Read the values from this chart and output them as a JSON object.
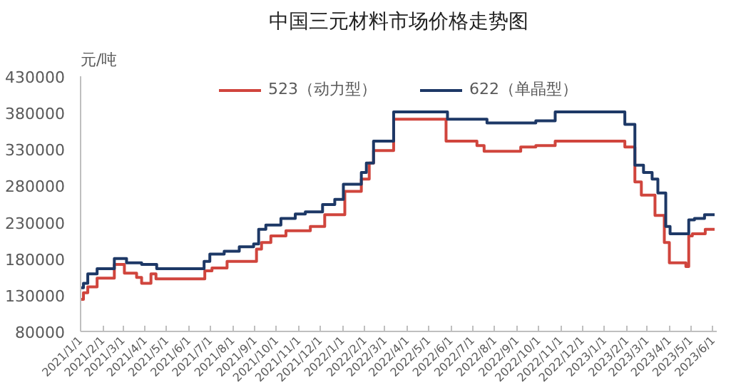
{
  "chart_data": {
    "type": "step",
    "title": "中国三元材料市场价格走势图",
    "ylabel": "元/吨",
    "legend": "top",
    "grid": false,
    "xlim": [
      "2021-01-01",
      "2023-06-06"
    ],
    "ylim": [
      80000,
      430000
    ],
    "yticks": [
      80000,
      130000,
      180000,
      230000,
      280000,
      330000,
      380000,
      430000
    ],
    "xticks": [
      {
        "value": "2021-01-01",
        "label": "2021/1/1"
      },
      {
        "value": "2021-02-01",
        "label": "2021/2/1"
      },
      {
        "value": "2021-03-01",
        "label": "2021/3/1"
      },
      {
        "value": "2021-04-01",
        "label": "2021/4/1"
      },
      {
        "value": "2021-05-01",
        "label": "2021/5/1"
      },
      {
        "value": "2021-06-01",
        "label": "2021/6/1"
      },
      {
        "value": "2021-07-01",
        "label": "2021/7/1"
      },
      {
        "value": "2021-08-01",
        "label": "2021/8/1"
      },
      {
        "value": "2021-09-01",
        "label": "2021/9/1"
      },
      {
        "value": "2021-10-01",
        "label": "2021/10/1"
      },
      {
        "value": "2021-11-01",
        "label": "2021/11/1"
      },
      {
        "value": "2021-12-01",
        "label": "2021/12/1"
      },
      {
        "value": "2022-01-01",
        "label": "2022/1/1"
      },
      {
        "value": "2022-02-01",
        "label": "2022/2/1"
      },
      {
        "value": "2022-03-01",
        "label": "2022/3/1"
      },
      {
        "value": "2022-04-01",
        "label": "2022/4/1"
      },
      {
        "value": "2022-05-01",
        "label": "2022/5/1"
      },
      {
        "value": "2022-06-01",
        "label": "2022/6/1"
      },
      {
        "value": "2022-07-01",
        "label": "2022/7/1"
      },
      {
        "value": "2022-08-01",
        "label": "2022/8/1"
      },
      {
        "value": "2022-09-01",
        "label": "2022/9/1"
      },
      {
        "value": "2022-10-01",
        "label": "2022/10/1"
      },
      {
        "value": "2022-11-01",
        "label": "2022/11/1"
      },
      {
        "value": "2022-12-01",
        "label": "2022/12/1"
      },
      {
        "value": "2023-01-01",
        "label": "2023/1/1"
      },
      {
        "value": "2023-02-01",
        "label": "2023/2/1"
      },
      {
        "value": "2023-03-01",
        "label": "2023/3/1"
      },
      {
        "value": "2023-04-01",
        "label": "2023/4/1"
      },
      {
        "value": "2023-05-01",
        "label": "2023/5/1"
      },
      {
        "value": "2023-06-01",
        "label": "2023/6/1"
      }
    ],
    "series": [
      {
        "name": "523（动力型）",
        "color": "#d0453d",
        "x": [
          "2021-01-01",
          "2021-01-05",
          "2021-01-11",
          "2021-01-24",
          "2021-02-17",
          "2021-03-03",
          "2021-03-20",
          "2021-03-27",
          "2021-04-09",
          "2021-04-16",
          "2021-06-23",
          "2021-07-03",
          "2021-07-24",
          "2021-09-03",
          "2021-09-10",
          "2021-09-23",
          "2021-10-14",
          "2021-11-17",
          "2021-12-07",
          "2022-01-04",
          "2022-01-27",
          "2022-02-07",
          "2022-02-13",
          "2022-03-13",
          "2022-05-25",
          "2022-07-07",
          "2022-07-17",
          "2022-09-06",
          "2022-09-27",
          "2022-10-24",
          "2023-01-29",
          "2023-02-12",
          "2023-02-21",
          "2023-03-12",
          "2023-03-25",
          "2023-04-01",
          "2023-04-24",
          "2023-04-28",
          "2023-05-03",
          "2023-05-21",
          "2023-06-03"
        ],
        "values": [
          124000,
          133000,
          141000,
          153000,
          172000,
          160000,
          154000,
          146000,
          159000,
          152000,
          163000,
          167000,
          176000,
          193000,
          202000,
          211000,
          218000,
          224000,
          240000,
          272000,
          289000,
          311000,
          328000,
          371000,
          341000,
          335000,
          327000,
          333000,
          335000,
          341000,
          333000,
          285000,
          267000,
          239000,
          202000,
          174000,
          169000,
          211000,
          214000,
          220000,
          220000
        ]
      },
      {
        "name": "622（单晶型）",
        "color": "#1d3866",
        "x": [
          "2021-01-01",
          "2021-01-05",
          "2021-01-11",
          "2021-01-24",
          "2021-02-17",
          "2021-03-06",
          "2021-03-27",
          "2021-04-17",
          "2021-06-22",
          "2021-06-30",
          "2021-07-20",
          "2021-08-10",
          "2021-08-30",
          "2021-09-06",
          "2021-09-16",
          "2021-10-07",
          "2021-10-27",
          "2021-11-10",
          "2021-12-04",
          "2021-12-21",
          "2022-01-02",
          "2022-01-27",
          "2022-02-03",
          "2022-02-13",
          "2022-03-13",
          "2022-05-27",
          "2022-07-21",
          "2022-09-27",
          "2022-10-24",
          "2023-01-29",
          "2023-02-12",
          "2023-02-24",
          "2023-03-08",
          "2023-03-16",
          "2023-03-27",
          "2023-04-02",
          "2023-04-28",
          "2023-05-06",
          "2023-05-20",
          "2023-06-03"
        ],
        "values": [
          140000,
          146000,
          159000,
          166000,
          180000,
          174000,
          172000,
          166000,
          176000,
          186000,
          190000,
          196000,
          200000,
          220000,
          226000,
          235000,
          241000,
          244000,
          254000,
          261000,
          282000,
          298000,
          311000,
          341000,
          381000,
          371000,
          366000,
          369000,
          381000,
          364000,
          308000,
          298000,
          289000,
          270000,
          224000,
          214000,
          233000,
          235000,
          240000,
          240000
        ]
      }
    ]
  }
}
